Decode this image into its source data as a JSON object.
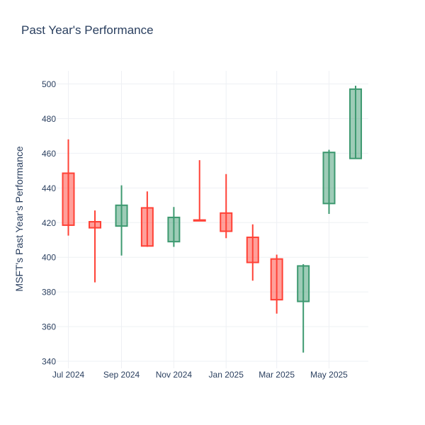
{
  "chart_data": {
    "type": "candlestick",
    "title": "Past Year's Performance",
    "ylabel": "MSFT's Past Year's Performance",
    "xlabel": "",
    "ylim": [
      336,
      508
    ],
    "yticks": [
      340,
      360,
      380,
      400,
      420,
      440,
      460,
      480,
      500
    ],
    "xticks": [
      {
        "label": "Jul 2024",
        "date": "2024-07-01"
      },
      {
        "label": "Sep 2024",
        "date": "2024-09-01"
      },
      {
        "label": "Nov 2024",
        "date": "2024-11-01"
      },
      {
        "label": "Jan 2025",
        "date": "2025-01-01"
      },
      {
        "label": "Mar 2025",
        "date": "2025-03-01"
      },
      {
        "label": "May 2025",
        "date": "2025-05-01"
      }
    ],
    "grid": true,
    "increasing_color": "#3d9970",
    "decreasing_color": "#ff4136",
    "candles": [
      {
        "date": "2024-07-01",
        "open": 448.5,
        "high": 468.0,
        "low": 412.5,
        "close": 418.5
      },
      {
        "date": "2024-08-01",
        "open": 420.5,
        "high": 427.0,
        "low": 385.5,
        "close": 417.0
      },
      {
        "date": "2024-09-01",
        "open": 418.0,
        "high": 441.5,
        "low": 401.0,
        "close": 430.0
      },
      {
        "date": "2024-10-01",
        "open": 428.5,
        "high": 438.0,
        "low": 406.0,
        "close": 406.5
      },
      {
        "date": "2024-11-01",
        "open": 409.0,
        "high": 429.0,
        "low": 406.0,
        "close": 423.0
      },
      {
        "date": "2024-12-01",
        "open": 421.5,
        "high": 456.0,
        "low": 421.0,
        "close": 421.0
      },
      {
        "date": "2025-01-01",
        "open": 425.5,
        "high": 448.0,
        "low": 411.0,
        "close": 415.0
      },
      {
        "date": "2025-02-01",
        "open": 411.5,
        "high": 419.0,
        "low": 386.5,
        "close": 397.0
      },
      {
        "date": "2025-03-01",
        "open": 399.0,
        "high": 401.5,
        "low": 367.5,
        "close": 375.5
      },
      {
        "date": "2025-04-01",
        "open": 374.5,
        "high": 396.0,
        "low": 345.0,
        "close": 395.0
      },
      {
        "date": "2025-05-01",
        "open": 431.0,
        "high": 462.0,
        "low": 425.0,
        "close": 460.5
      },
      {
        "date": "2025-06-01",
        "open": 457.0,
        "high": 499.0,
        "low": 457.0,
        "close": 497.0
      }
    ]
  }
}
